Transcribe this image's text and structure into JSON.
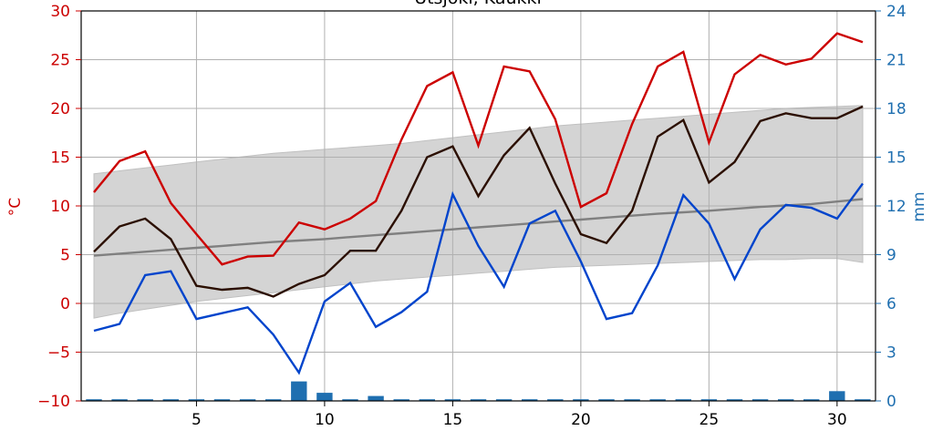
{
  "chart_data": {
    "type": "line",
    "title": "Utsjoki, Kaukki",
    "ylabel": "°C",
    "y2label": "mm",
    "xlim": [
      0.5,
      31.5
    ],
    "ylim": [
      -10,
      30
    ],
    "y2lim": [
      0,
      24
    ],
    "x_ticks": [
      "5",
      "10",
      "15",
      "20",
      "25",
      "30"
    ],
    "y_ticks": [
      "−10",
      "−5",
      "0",
      "5",
      "10",
      "15",
      "20",
      "25",
      "30"
    ],
    "y2_ticks": [
      "0",
      "3",
      "6",
      "9",
      "12",
      "15",
      "18",
      "21",
      "24"
    ],
    "grid": true,
    "colors": {
      "max": "#cc0000",
      "mean": "#2b0f00",
      "min": "#0044cc",
      "normal": "#808080",
      "band": "#d4d4d4",
      "precip": "#1f6fb0",
      "left_axis": "#cc0000",
      "right_axis": "#1f6fb0"
    },
    "days": [
      1,
      2,
      3,
      4,
      5,
      6,
      7,
      8,
      9,
      10,
      11,
      12,
      13,
      14,
      15,
      16,
      17,
      18,
      19,
      20,
      21,
      22,
      23,
      24,
      25,
      26,
      27,
      28,
      29,
      30,
      31
    ],
    "series": [
      {
        "key": "max",
        "axis": "left",
        "values": [
          11.4,
          14.6,
          15.6,
          10.3,
          7.1,
          4.0,
          4.8,
          4.9,
          8.3,
          7.6,
          8.7,
          10.5,
          16.8,
          22.3,
          23.7,
          16.2,
          24.3,
          23.8,
          18.9,
          9.9,
          11.3,
          18.4,
          24.3,
          25.8,
          16.5,
          23.5,
          25.5,
          24.5,
          25.1,
          27.7,
          26.8
        ]
      },
      {
        "key": "mean",
        "axis": "left",
        "values": [
          5.3,
          7.9,
          8.7,
          6.6,
          1.8,
          1.4,
          1.6,
          0.7,
          2.0,
          2.9,
          5.4,
          5.4,
          9.5,
          15.0,
          16.1,
          11.0,
          15.2,
          18.0,
          12.3,
          7.1,
          6.2,
          9.5,
          17.1,
          18.8,
          12.4,
          14.5,
          18.7,
          19.5,
          19.0,
          19.0,
          20.2
        ]
      },
      {
        "key": "min",
        "axis": "left",
        "values": [
          -2.8,
          -2.1,
          2.9,
          3.3,
          -1.6,
          -1.0,
          -0.4,
          -3.2,
          -7.1,
          0.2,
          2.1,
          -2.4,
          -0.9,
          1.2,
          11.2,
          5.9,
          1.7,
          8.2,
          9.5,
          4.3,
          -1.6,
          -1.0,
          3.9,
          11.1,
          8.2,
          2.5,
          7.6,
          10.1,
          9.8,
          8.7,
          12.3
        ]
      },
      {
        "key": "normal",
        "axis": "left",
        "values": [
          4.9,
          5.1,
          5.3,
          5.5,
          5.7,
          5.9,
          6.1,
          6.3,
          6.45,
          6.6,
          6.8,
          7.0,
          7.2,
          7.4,
          7.6,
          7.8,
          8.0,
          8.2,
          8.4,
          8.6,
          8.8,
          9.0,
          9.2,
          9.35,
          9.5,
          9.7,
          9.9,
          10.05,
          10.2,
          10.45,
          10.7
        ]
      },
      {
        "key": "normal_low",
        "axis": "left",
        "values": [
          -1.5,
          -1.0,
          -0.6,
          -0.2,
          0.2,
          0.5,
          0.8,
          1.1,
          1.4,
          1.7,
          2.0,
          2.3,
          2.5,
          2.7,
          2.9,
          3.1,
          3.3,
          3.5,
          3.7,
          3.8,
          3.9,
          4.0,
          4.1,
          4.2,
          4.3,
          4.4,
          4.5,
          4.5,
          4.6,
          4.6,
          4.2
        ]
      },
      {
        "key": "normal_high",
        "axis": "left",
        "values": [
          13.3,
          13.6,
          13.9,
          14.2,
          14.5,
          14.8,
          15.1,
          15.4,
          15.6,
          15.8,
          16.0,
          16.2,
          16.4,
          16.7,
          17.0,
          17.3,
          17.6,
          17.9,
          18.2,
          18.4,
          18.6,
          18.8,
          19.0,
          19.2,
          19.4,
          19.6,
          19.8,
          20.0,
          20.1,
          20.2,
          20.3
        ]
      },
      {
        "key": "precip",
        "type": "bar",
        "axis": "right",
        "values": [
          0.1,
          0.1,
          0.1,
          0.1,
          0.1,
          0.1,
          0.1,
          0.1,
          1.2,
          0.5,
          0.1,
          0.3,
          0.1,
          0.1,
          0.1,
          0.1,
          0.1,
          0.1,
          0.1,
          0.1,
          0.1,
          0.1,
          0.1,
          0.1,
          0.1,
          0.1,
          0.1,
          0.1,
          0.1,
          0.6,
          0.1
        ]
      }
    ]
  }
}
